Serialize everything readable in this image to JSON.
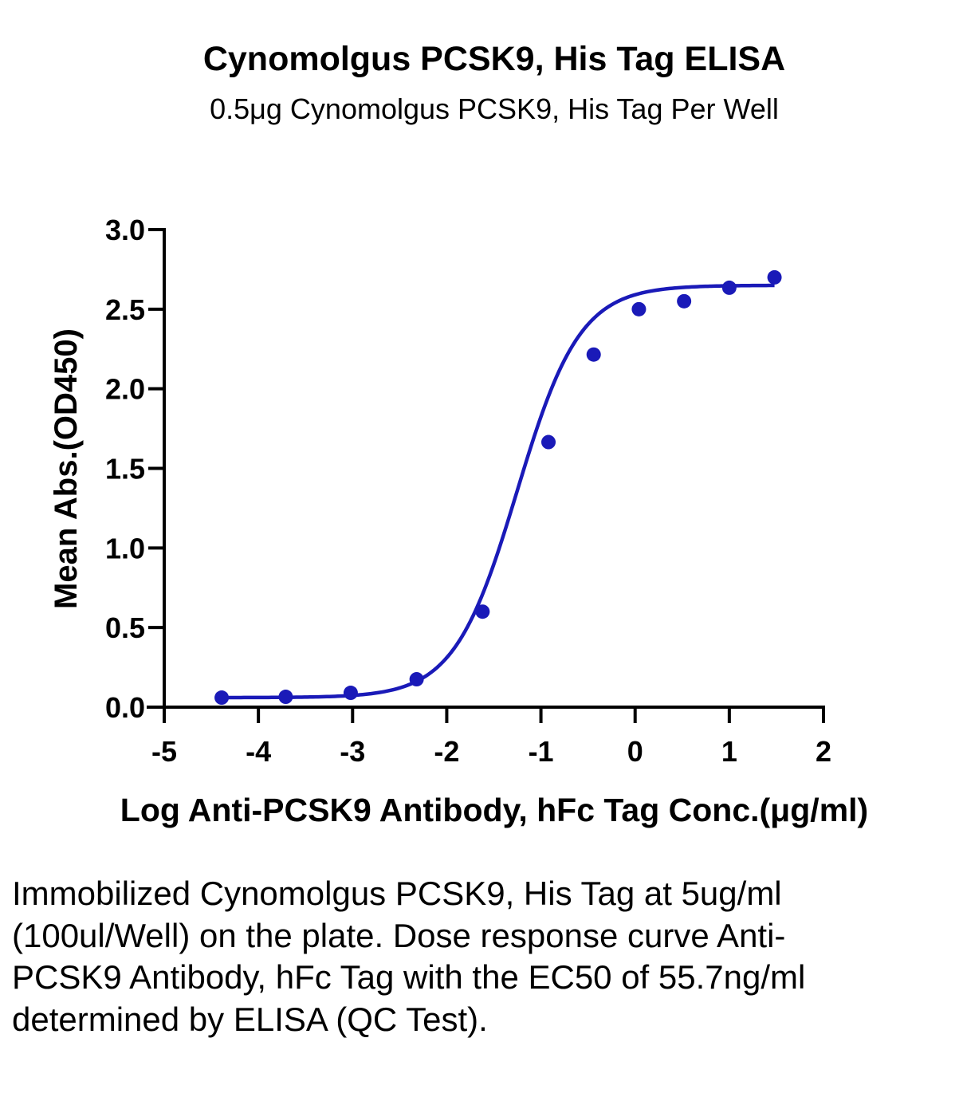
{
  "chart_data": {
    "type": "scatter",
    "title": "Cynomolgus PCSK9, His Tag ELISA",
    "subtitle": "0.5μg Cynomolgus PCSK9, His Tag Per Well",
    "xlabel": "Log Anti-PCSK9 Antibody, hFc Tag Conc.(μg/ml)",
    "ylabel": "Mean Abs.(OD450)",
    "xlim": [
      -5,
      2
    ],
    "ylim": [
      0,
      3
    ],
    "x_ticks": [
      "-5",
      "-4",
      "-3",
      "-2",
      "-1",
      "0",
      "1",
      "2"
    ],
    "y_ticks": [
      "0.0",
      "0.5",
      "1.0",
      "1.5",
      "2.0",
      "2.5",
      "3.0"
    ],
    "grid": false,
    "series": [
      {
        "x": [
          -4.39,
          -3.71,
          -3.02,
          -2.32,
          -1.62,
          -0.92,
          -0.44,
          0.04,
          0.52,
          1.0,
          1.48
        ],
        "y": [
          0.06,
          0.065,
          0.09,
          0.175,
          0.6,
          1.665,
          2.215,
          2.5,
          2.55,
          2.635,
          2.7
        ],
        "color": "#1a1ab8",
        "fit": "4PL",
        "fit_params": {
          "bottom": 0.06,
          "top": 2.65,
          "log_ec50": -1.254,
          "hill": 1.3
        }
      }
    ],
    "colors": {
      "series": "#1a1ab8",
      "axes": "#000000"
    }
  },
  "caption": "Immobilized Cynomolgus PCSK9, His Tag at 5ug/ml (100ul/Well) on the plate. Dose response curve Anti-PCSK9 Antibody, hFc Tag with the EC50 of 55.7ng/ml determined by ELISA (QC Test)."
}
